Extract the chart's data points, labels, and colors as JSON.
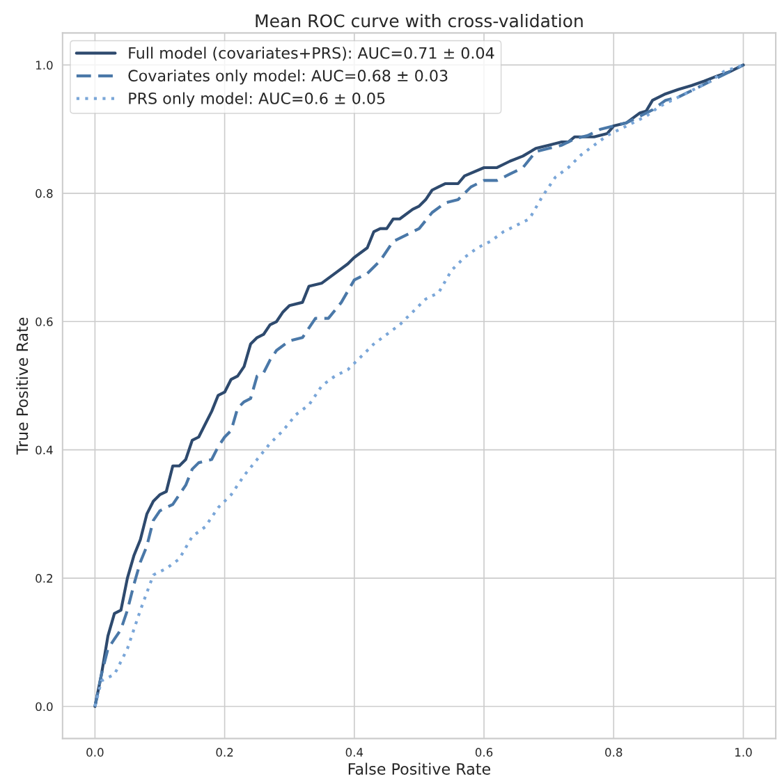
{
  "chart_data": {
    "type": "line",
    "title": "Mean ROC curve with cross-validation",
    "xlabel": "False Positive Rate",
    "ylabel": "True Positive Rate",
    "xlim": [
      -0.05,
      1.05
    ],
    "ylim": [
      -0.05,
      1.05
    ],
    "xticks": [
      {
        "value": 0,
        "label": "0.0"
      },
      {
        "value": 0.2,
        "label": "0.2"
      },
      {
        "value": 0.4,
        "label": "0.4"
      },
      {
        "value": 0.6,
        "label": "0.6"
      },
      {
        "value": 0.8,
        "label": "0.8"
      },
      {
        "value": 1,
        "label": "1.0"
      }
    ],
    "yticks": [
      {
        "value": 0,
        "label": "0.0"
      },
      {
        "value": 0.2,
        "label": "0.2"
      },
      {
        "value": 0.4,
        "label": "0.4"
      },
      {
        "value": 0.6,
        "label": "0.6"
      },
      {
        "value": 0.8,
        "label": "0.8"
      },
      {
        "value": 1,
        "label": "1.0"
      }
    ],
    "grid": true,
    "legend": "top left",
    "marker": "none",
    "series": [
      {
        "name": "Full model (covariates+PRS): AUC=0.71 ± 0.04",
        "color": "#2e4a6e",
        "line_style": "solid",
        "x": [
          0,
          0.01,
          0.02,
          0.03,
          0.04,
          0.05,
          0.06,
          0.07,
          0.08,
          0.09,
          0.1,
          0.11,
          0.12,
          0.13,
          0.14,
          0.15,
          0.16,
          0.17,
          0.18,
          0.19,
          0.2,
          0.21,
          0.22,
          0.23,
          0.24,
          0.25,
          0.26,
          0.27,
          0.28,
          0.29,
          0.3,
          0.32,
          0.33,
          0.35,
          0.37,
          0.39,
          0.4,
          0.42,
          0.43,
          0.44,
          0.45,
          0.46,
          0.47,
          0.49,
          0.5,
          0.51,
          0.52,
          0.53,
          0.54,
          0.56,
          0.57,
          0.6,
          0.62,
          0.64,
          0.66,
          0.68,
          0.7,
          0.72,
          0.73,
          0.74,
          0.77,
          0.79,
          0.8,
          0.82,
          0.84,
          0.85,
          0.86,
          0.88,
          0.9,
          0.92,
          0.94,
          0.96,
          0.98,
          1
        ],
        "values": [
          0,
          0.05,
          0.11,
          0.145,
          0.15,
          0.2,
          0.235,
          0.26,
          0.3,
          0.32,
          0.33,
          0.335,
          0.375,
          0.375,
          0.385,
          0.415,
          0.42,
          0.44,
          0.46,
          0.485,
          0.49,
          0.51,
          0.515,
          0.53,
          0.565,
          0.575,
          0.58,
          0.595,
          0.6,
          0.615,
          0.625,
          0.63,
          0.655,
          0.66,
          0.675,
          0.69,
          0.7,
          0.715,
          0.74,
          0.745,
          0.745,
          0.76,
          0.76,
          0.775,
          0.78,
          0.79,
          0.805,
          0.81,
          0.815,
          0.815,
          0.827,
          0.84,
          0.84,
          0.85,
          0.858,
          0.87,
          0.875,
          0.88,
          0.88,
          0.888,
          0.888,
          0.893,
          0.905,
          0.91,
          0.925,
          0.928,
          0.945,
          0.955,
          0.962,
          0.968,
          0.975,
          0.983,
          0.99,
          1
        ]
      },
      {
        "name": "Covariates only model: AUC=0.68 ± 0.03",
        "color": "#4a78a8",
        "line_style": "dashed",
        "x": [
          0,
          0.01,
          0.02,
          0.03,
          0.04,
          0.05,
          0.06,
          0.07,
          0.08,
          0.09,
          0.1,
          0.11,
          0.12,
          0.13,
          0.14,
          0.15,
          0.16,
          0.18,
          0.19,
          0.2,
          0.21,
          0.22,
          0.23,
          0.24,
          0.25,
          0.26,
          0.27,
          0.28,
          0.3,
          0.32,
          0.34,
          0.36,
          0.38,
          0.4,
          0.42,
          0.44,
          0.46,
          0.48,
          0.5,
          0.52,
          0.54,
          0.56,
          0.58,
          0.6,
          0.62,
          0.64,
          0.66,
          0.68,
          0.7,
          0.72,
          0.74,
          0.76,
          0.78,
          0.8,
          0.82,
          0.84,
          0.86,
          0.88,
          0.9,
          0.92,
          0.94,
          0.96,
          0.98,
          1
        ],
        "values": [
          0,
          0.05,
          0.09,
          0.105,
          0.12,
          0.15,
          0.19,
          0.225,
          0.25,
          0.29,
          0.305,
          0.31,
          0.315,
          0.33,
          0.345,
          0.37,
          0.38,
          0.385,
          0.405,
          0.42,
          0.43,
          0.465,
          0.475,
          0.48,
          0.515,
          0.52,
          0.54,
          0.555,
          0.57,
          0.575,
          0.605,
          0.605,
          0.63,
          0.665,
          0.675,
          0.695,
          0.725,
          0.735,
          0.745,
          0.77,
          0.785,
          0.79,
          0.81,
          0.82,
          0.82,
          0.83,
          0.84,
          0.865,
          0.87,
          0.875,
          0.885,
          0.89,
          0.9,
          0.905,
          0.91,
          0.92,
          0.93,
          0.945,
          0.95,
          0.96,
          0.97,
          0.98,
          0.99,
          1
        ]
      },
      {
        "name": "PRS only model: AUC=0.6 ± 0.05",
        "color": "#7aa6d8",
        "line_style": "dotted",
        "x": [
          0,
          0.01,
          0.03,
          0.05,
          0.07,
          0.09,
          0.11,
          0.13,
          0.15,
          0.17,
          0.19,
          0.21,
          0.23,
          0.25,
          0.27,
          0.29,
          0.31,
          0.33,
          0.35,
          0.37,
          0.39,
          0.41,
          0.43,
          0.45,
          0.47,
          0.49,
          0.51,
          0.53,
          0.55,
          0.57,
          0.59,
          0.61,
          0.63,
          0.65,
          0.67,
          0.69,
          0.71,
          0.73,
          0.75,
          0.77,
          0.79,
          0.81,
          0.83,
          0.85,
          0.87,
          0.89,
          0.91,
          0.93,
          0.95,
          0.97,
          1
        ],
        "values": [
          0,
          0.04,
          0.05,
          0.09,
          0.15,
          0.205,
          0.215,
          0.23,
          0.265,
          0.28,
          0.31,
          0.33,
          0.36,
          0.385,
          0.41,
          0.43,
          0.455,
          0.47,
          0.5,
          0.515,
          0.525,
          0.545,
          0.565,
          0.58,
          0.595,
          0.615,
          0.635,
          0.645,
          0.68,
          0.7,
          0.715,
          0.725,
          0.74,
          0.75,
          0.76,
          0.795,
          0.825,
          0.84,
          0.86,
          0.875,
          0.89,
          0.9,
          0.91,
          0.92,
          0.935,
          0.945,
          0.955,
          0.965,
          0.975,
          0.99,
          1
        ]
      }
    ]
  }
}
